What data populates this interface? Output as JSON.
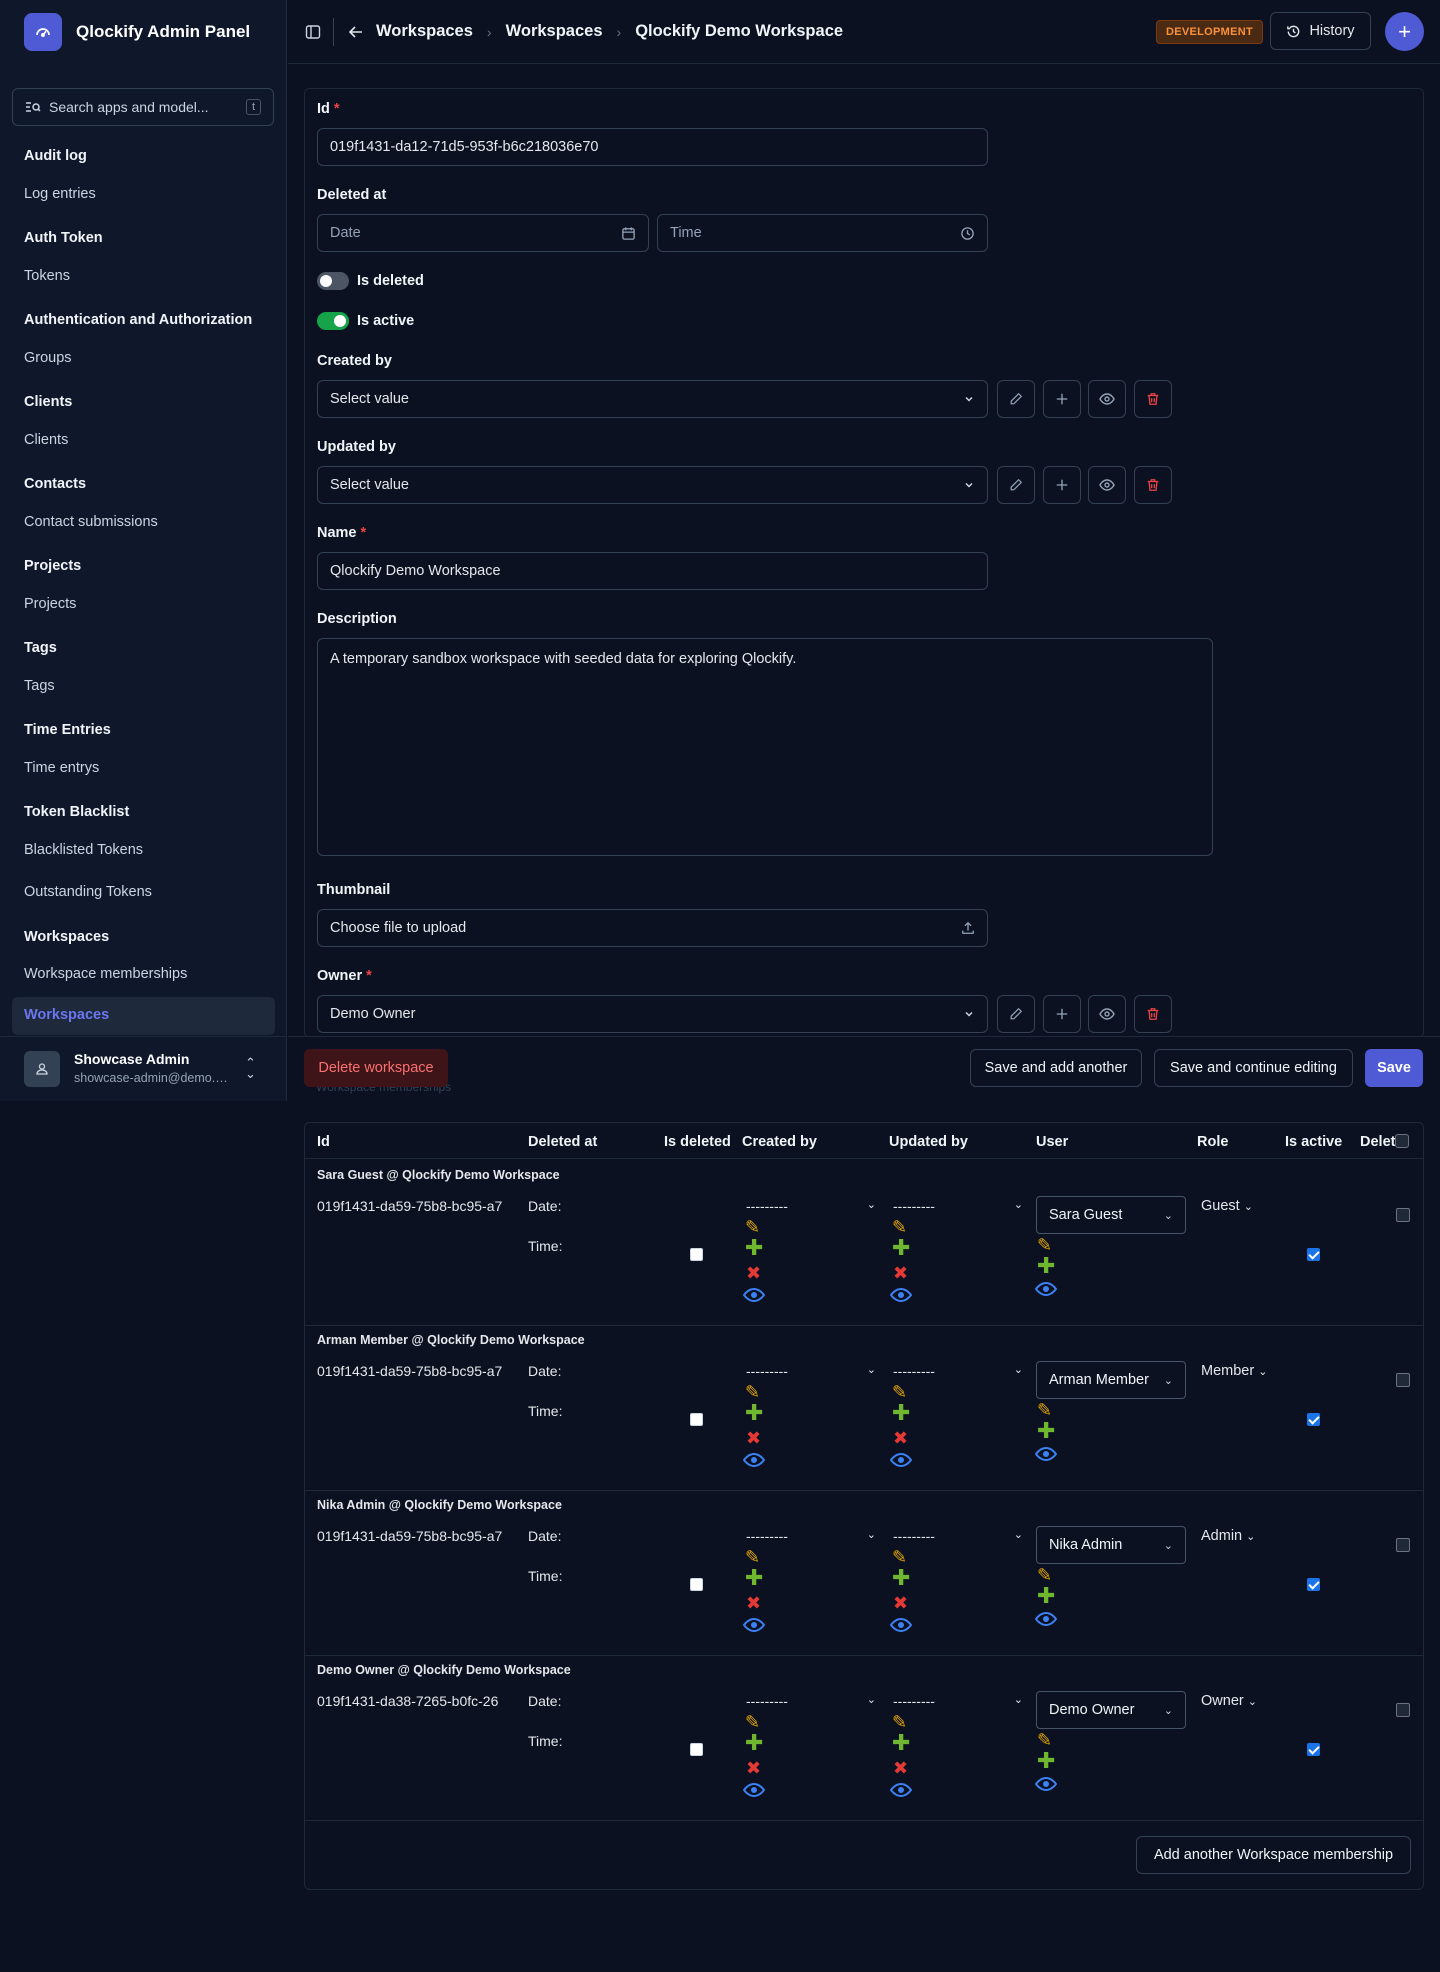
{
  "app": {
    "title": "Qlockify Admin Panel"
  },
  "search": {
    "placeholder": "Search apps and model...",
    "shortcut": "t"
  },
  "sidebar": {
    "groups": [
      {
        "label": "Audit log",
        "items": [
          "Log entries"
        ]
      },
      {
        "label": "Auth Token",
        "items": [
          "Tokens"
        ]
      },
      {
        "label": "Authentication and Authorization",
        "items": [
          "Groups"
        ]
      },
      {
        "label": "Clients",
        "items": [
          "Clients"
        ]
      },
      {
        "label": "Contacts",
        "items": [
          "Contact submissions"
        ]
      },
      {
        "label": "Projects",
        "items": [
          "Projects"
        ]
      },
      {
        "label": "Tags",
        "items": [
          "Tags"
        ]
      },
      {
        "label": "Time Entries",
        "items": [
          "Time entrys"
        ]
      },
      {
        "label": "Token Blacklist",
        "items": [
          "Blacklisted Tokens",
          "Outstanding Tokens"
        ]
      },
      {
        "label": "Workspaces",
        "items": [
          "Workspace memberships",
          "Workspaces"
        ]
      }
    ],
    "user": {
      "name": "Showcase Admin",
      "email": "showcase-admin@demo.qlockify.com"
    }
  },
  "header": {
    "breadcrumbs": [
      "Workspaces",
      "Workspaces",
      "Qlockify Demo Workspace"
    ],
    "env_badge": "DEVELOPMENT",
    "history_label": "History"
  },
  "form": {
    "id": {
      "label": "Id",
      "value": "019f1431-da12-71d5-953f-b6c218036e70"
    },
    "deleted_at": {
      "label": "Deleted at",
      "date_placeholder": "Date",
      "time_placeholder": "Time"
    },
    "is_deleted": {
      "label": "Is deleted",
      "value": false
    },
    "is_active": {
      "label": "Is active",
      "value": true
    },
    "created_by": {
      "label": "Created by",
      "value": "Select value"
    },
    "updated_by": {
      "label": "Updated by",
      "value": "Select value"
    },
    "name": {
      "label": "Name",
      "value": "Qlockify Demo Workspace"
    },
    "description": {
      "label": "Description",
      "value": "A temporary sandbox workspace with seeded data for exploring Qlockify."
    },
    "thumbnail": {
      "label": "Thumbnail",
      "value": "Choose file to upload"
    },
    "owner": {
      "label": "Owner",
      "value": "Demo Owner"
    }
  },
  "actions": {
    "delete": "Delete workspace",
    "save_add_another": "Save and add another",
    "save_continue": "Save and continue editing",
    "save": "Save",
    "ghost_text": "Workspace memberships"
  },
  "memberships": {
    "columns": [
      "Id",
      "Deleted at",
      "Is deleted",
      "Created by",
      "Updated by",
      "User",
      "Role",
      "Is active",
      "Delete?"
    ],
    "date_label": "Date:",
    "time_label": "Time:",
    "empty_select": "---------",
    "rows": [
      {
        "title": "Sara Guest @ Qlockify Demo Workspace",
        "id": "019f1431-da59-75b8-bc95-a7",
        "user": "Sara Guest",
        "role": "Guest",
        "is_deleted": false,
        "is_active": true,
        "delete": false
      },
      {
        "title": "Arman Member @ Qlockify Demo Workspace",
        "id": "019f1431-da59-75b8-bc95-a7",
        "user": "Arman Member",
        "role": "Member",
        "is_deleted": false,
        "is_active": true,
        "delete": false
      },
      {
        "title": "Nika Admin @ Qlockify Demo Workspace",
        "id": "019f1431-da59-75b8-bc95-a7",
        "user": "Nika Admin",
        "role": "Admin",
        "is_deleted": false,
        "is_active": true,
        "delete": false
      },
      {
        "title": "Demo Owner @ Qlockify Demo Workspace",
        "id": "019f1431-da38-7265-b0fc-26",
        "user": "Demo Owner",
        "role": "Owner",
        "is_deleted": false,
        "is_active": true,
        "delete": false
      }
    ],
    "add_another": "Add another Workspace membership"
  },
  "colors": {
    "accent": "#4f5bd5",
    "danger": "#ef4444",
    "success": "#16a34a",
    "warning": "#fb923c"
  }
}
